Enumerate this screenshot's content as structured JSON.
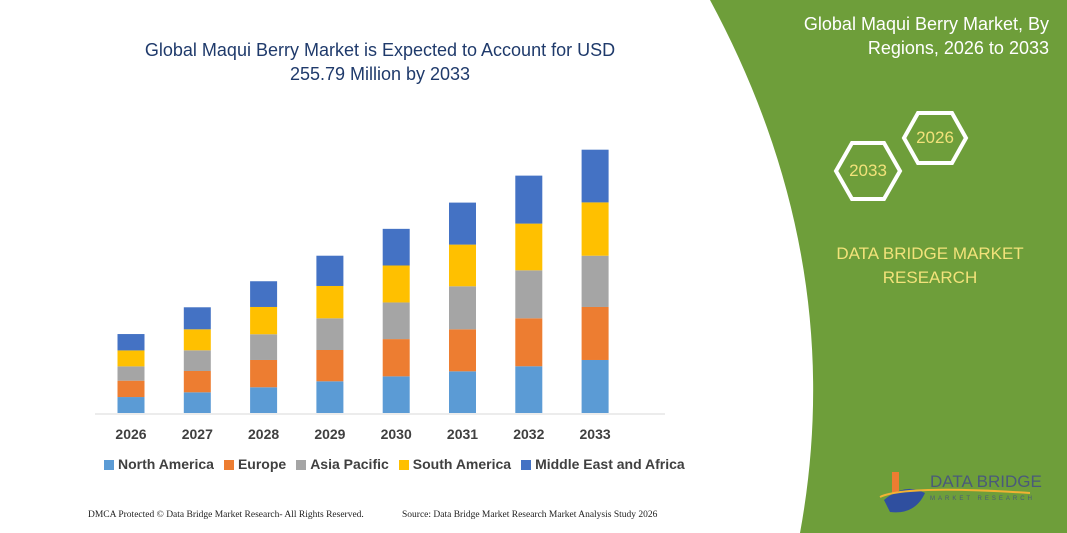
{
  "header": {
    "title": "Global Maqui Berry Market is Expected to Account for USD 255.79 Million by 2033"
  },
  "side_panel": {
    "title": "Global Maqui Berry Market, By Regions, 2026 to 2033",
    "hex_start": "2026",
    "hex_end": "2033",
    "brand": "DATA BRIDGE MARKET RESEARCH",
    "logo_text": "DATA BRIDGE",
    "logo_subtext": "MARKET RESEARCH",
    "panel_color": "#6e9e3a"
  },
  "footer": {
    "left": "DMCA Protected © Data Bridge Market Research-  All Rights Reserved.",
    "right": "Source: Data Bridge Market Research  Market Analysis Study 2026"
  },
  "chart_data": {
    "type": "bar",
    "stacked": true,
    "title": "Global Maqui Berry Market is Expected to Account for USD 255.79 Million by 2033",
    "unit": "USD Million",
    "categories": [
      "2026",
      "2027",
      "2028",
      "2029",
      "2030",
      "2031",
      "2032",
      "2033"
    ],
    "series": [
      {
        "name": "North America",
        "color": "#5b9bd5",
        "values": [
          15.5,
          20.1,
          25.0,
          30.8,
          35.6,
          40.5,
          45.4,
          51.5
        ]
      },
      {
        "name": "Europe",
        "color": "#ed7d31",
        "values": [
          15.9,
          20.7,
          26.5,
          30.4,
          36.2,
          40.8,
          46.6,
          51.5
        ]
      },
      {
        "name": "Asia Pacific",
        "color": "#a5a5a5",
        "values": [
          13.9,
          20.1,
          25.0,
          30.8,
          35.6,
          41.8,
          46.6,
          49.8
        ]
      },
      {
        "name": "South America",
        "color": "#ffc000",
        "values": [
          15.5,
          20.4,
          26.5,
          31.4,
          35.9,
          40.5,
          45.4,
          51.8
        ]
      },
      {
        "name": "Middle East and Africa",
        "color": "#4472c4",
        "values": [
          15.9,
          21.4,
          25.0,
          29.4,
          35.6,
          40.8,
          46.6,
          51.2
        ]
      }
    ],
    "legend": "bottom",
    "grid": false,
    "y_axis_visible": false
  }
}
